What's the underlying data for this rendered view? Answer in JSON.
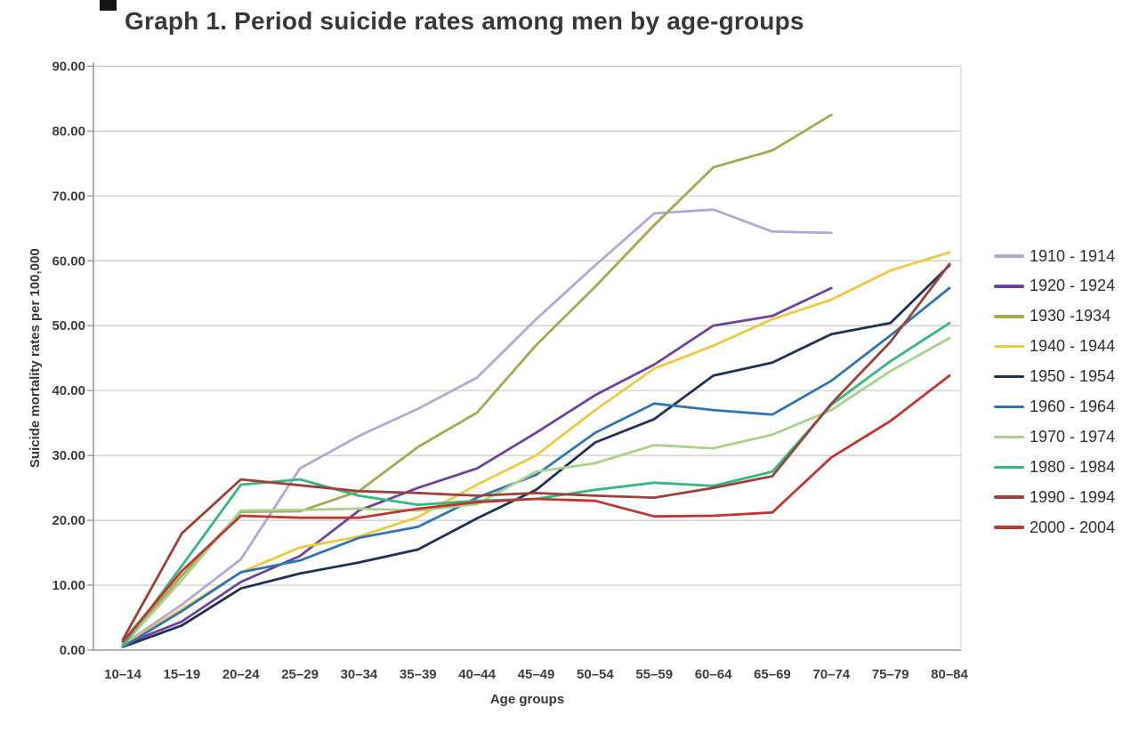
{
  "chart_data": {
    "type": "line",
    "title": "Graph 1. Period suicide rates among men by age-groups",
    "xlabel": "Age groups",
    "ylabel": "Suicide mortality rates per 100,000",
    "ylim": [
      0,
      90
    ],
    "ytick_step": 10,
    "yticks": [
      "0.00",
      "10.00",
      "20.00",
      "30.00",
      "40.00",
      "50.00",
      "60.00",
      "70.00",
      "80.00",
      "90.00"
    ],
    "grid": "horizontal",
    "legend_position": "right",
    "categories": [
      "10–14",
      "15–19",
      "20–24",
      "25–29",
      "30–34",
      "35–39",
      "40–44",
      "45–49",
      "50–54",
      "55–59",
      "60–64",
      "65–69",
      "70–74",
      "75–79",
      "80–84"
    ],
    "series": [
      {
        "name": "1910 - 1914",
        "color": "#b4a7d6",
        "values": [
          0.8,
          7.0,
          14.0,
          28.0,
          33.0,
          37.2,
          42.0,
          51.0,
          59.3,
          67.3,
          67.9,
          64.5,
          64.3
        ]
      },
      {
        "name": "1920 - 1924",
        "color": "#6f42a0",
        "values": [
          0.8,
          4.4,
          10.5,
          14.5,
          21.5,
          25.0,
          28.0,
          33.5,
          39.3,
          44.0,
          50.0,
          51.5,
          55.8
        ]
      },
      {
        "name": "1930 -1934",
        "color": "#a6a84f",
        "values": [
          0.8,
          11.5,
          21.3,
          21.4,
          24.5,
          31.3,
          36.6,
          47.0,
          56.0,
          65.5,
          74.4,
          77.0,
          82.5
        ]
      },
      {
        "name": "1940 - 1944",
        "color": "#eec93f",
        "values": [
          0.7,
          6.3,
          12.0,
          15.8,
          17.5,
          20.5,
          25.5,
          30.0,
          37.0,
          43.4,
          46.9,
          51.0,
          54.0,
          58.5,
          61.3
        ]
      },
      {
        "name": "1950 - 1954",
        "color": "#1f3255",
        "values": [
          0.5,
          3.8,
          9.5,
          11.8,
          13.5,
          15.5,
          20.3,
          24.7,
          32.0,
          35.6,
          42.3,
          44.3,
          48.7,
          50.4,
          59.3
        ]
      },
      {
        "name": "1960 - 1964",
        "color": "#2e75b6",
        "values": [
          0.5,
          6.0,
          12.0,
          13.8,
          17.3,
          19.0,
          23.5,
          27.0,
          33.5,
          38.0,
          37.0,
          36.3,
          41.5,
          48.5,
          55.8
        ]
      },
      {
        "name": "1970 - 1974",
        "color": "#a6d28a",
        "values": [
          0.7,
          10.8,
          21.5,
          21.6,
          21.8,
          21.5,
          22.5,
          27.5,
          28.8,
          31.6,
          31.1,
          33.2,
          37.0,
          43.0,
          48.1
        ]
      },
      {
        "name": "1980 - 1984",
        "color": "#35b87e",
        "values": [
          0.7,
          13.0,
          25.5,
          26.3,
          23.8,
          22.4,
          23.0,
          23.3,
          24.7,
          25.8,
          25.3,
          27.5,
          37.8,
          44.5,
          50.4
        ]
      },
      {
        "name": "1990 - 1994",
        "color": "#9c4139",
        "values": [
          1.6,
          18.0,
          26.3,
          25.4,
          24.5,
          24.2,
          23.8,
          24.2,
          23.8,
          23.5,
          25.0,
          26.8,
          38.0,
          47.5,
          59.5
        ]
      },
      {
        "name": "2000 - 2004",
        "color": "#c23531",
        "values": [
          1.3,
          12.2,
          20.7,
          20.4,
          20.4,
          21.8,
          22.8,
          23.3,
          23.0,
          20.6,
          20.7,
          21.2,
          29.7,
          35.3,
          42.3
        ]
      }
    ]
  }
}
